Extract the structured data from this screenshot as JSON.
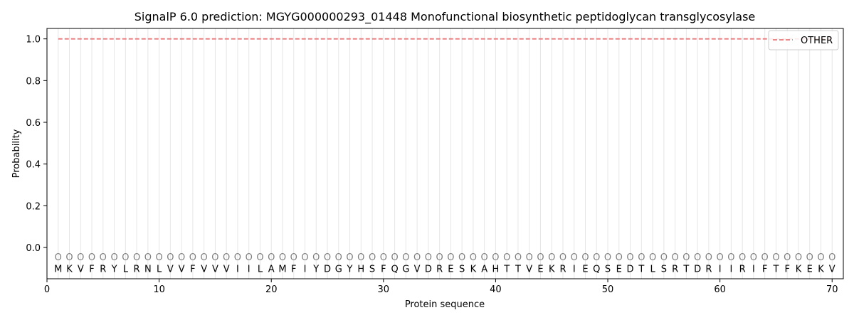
{
  "chart_data": {
    "type": "line",
    "title": "SignalP 6.0 prediction: MGYG000000293_01448 Monofunctional biosynthetic peptidoglycan transglycosylase",
    "xlabel": "Protein sequence",
    "ylabel": "Probability",
    "xlim": [
      0,
      71
    ],
    "ylim": [
      -0.15,
      1.05
    ],
    "xticks": [
      0,
      10,
      20,
      30,
      40,
      50,
      60,
      70
    ],
    "yticks": [
      0.0,
      0.2,
      0.4,
      0.6,
      0.8,
      1.0
    ],
    "ytick_labels": [
      "0.0",
      "0.2",
      "0.4",
      "0.6",
      "0.8",
      "1.0"
    ],
    "legend_position": "top-right",
    "grid": "vertical lines at each residue",
    "sequence": [
      "M",
      "K",
      "V",
      "F",
      "R",
      "Y",
      "L",
      "R",
      "N",
      "L",
      "V",
      "V",
      "F",
      "V",
      "V",
      "V",
      "I",
      "I",
      "L",
      "A",
      "M",
      "F",
      "I",
      "Y",
      "D",
      "G",
      "Y",
      "H",
      "S",
      "F",
      "Q",
      "G",
      "V",
      "D",
      "R",
      "E",
      "S",
      "K",
      "A",
      "H",
      "T",
      "T",
      "V",
      "E",
      "K",
      "R",
      "I",
      "E",
      "Q",
      "S",
      "E",
      "D",
      "T",
      "L",
      "S",
      "R",
      "T",
      "D",
      "R",
      "I",
      "I",
      "R",
      "I",
      "F",
      "T",
      "F",
      "K",
      "E",
      "K",
      "V"
    ],
    "predicted_states": [
      "O",
      "O",
      "O",
      "O",
      "O",
      "O",
      "O",
      "O",
      "O",
      "O",
      "O",
      "O",
      "O",
      "O",
      "O",
      "O",
      "O",
      "O",
      "O",
      "O",
      "O",
      "O",
      "O",
      "O",
      "O",
      "O",
      "O",
      "O",
      "O",
      "O",
      "O",
      "O",
      "O",
      "O",
      "O",
      "O",
      "O",
      "O",
      "O",
      "O",
      "O",
      "O",
      "O",
      "O",
      "O",
      "O",
      "O",
      "O",
      "O",
      "O",
      "O",
      "O",
      "O",
      "O",
      "O",
      "O",
      "O",
      "O",
      "O",
      "O",
      "O",
      "O",
      "O",
      "O",
      "O",
      "O",
      "O",
      "O",
      "O",
      "O"
    ],
    "series": [
      {
        "name": "OTHER",
        "color": "#e8797a",
        "style": "dashed",
        "x_start": 1,
        "x_end": 70,
        "value": 1.0
      }
    ]
  }
}
